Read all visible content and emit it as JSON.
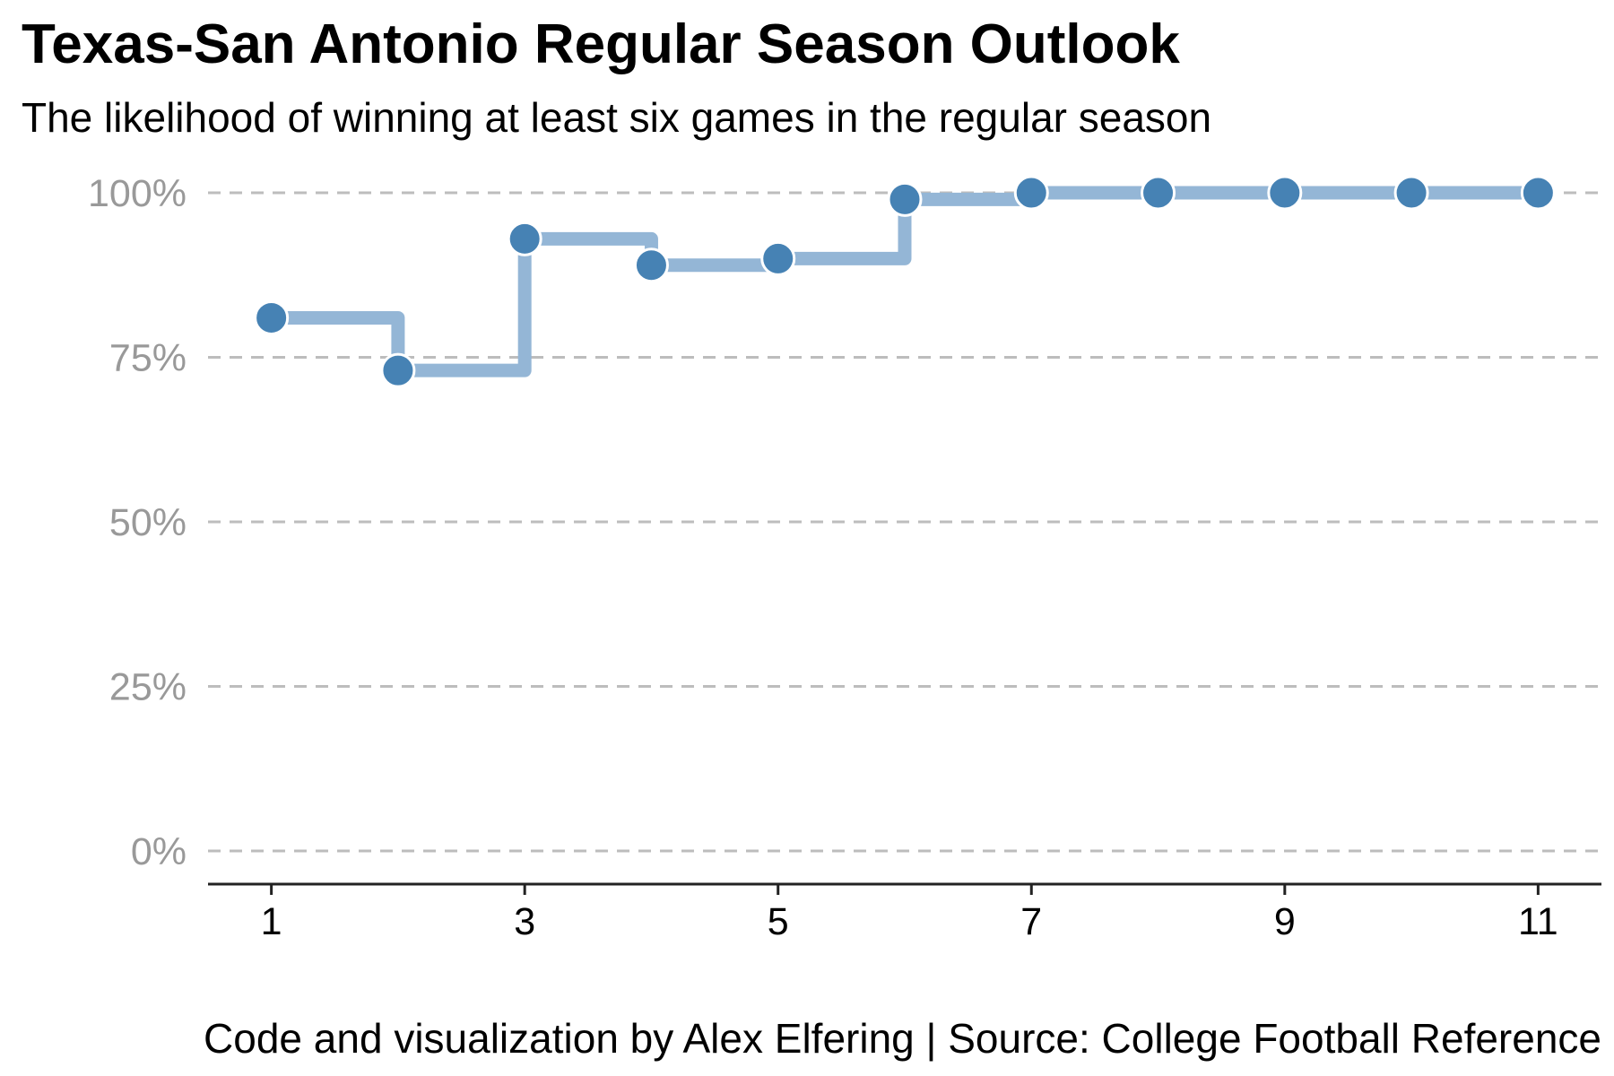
{
  "title": "Texas-San Antonio Regular Season Outlook",
  "subtitle": "The likelihood of winning at least six games in the regular season",
  "caption": "Code and visualization by Alex Elfering | Source: College Football Reference",
  "colors": {
    "step_line": "#94b6d6",
    "point": "#4682b4",
    "grid": "#bdbdbd",
    "axis": "#222222",
    "y_tick_text": "#999999",
    "x_tick_text": "#000000"
  },
  "chart_data": {
    "type": "line",
    "line_style": "step",
    "x": [
      1,
      2,
      3,
      4,
      5,
      6,
      7,
      8,
      9,
      10,
      11
    ],
    "values": [
      0.81,
      0.73,
      0.93,
      0.89,
      0.9,
      0.99,
      1.0,
      1.0,
      1.0,
      1.0,
      1.0
    ],
    "xlim": [
      0.5,
      11.5
    ],
    "ylim": [
      0,
      1
    ],
    "x_ticks": [
      1,
      3,
      5,
      7,
      9,
      11
    ],
    "y_ticks": [
      0,
      0.25,
      0.5,
      0.75,
      1.0
    ],
    "y_tick_labels": [
      "0%",
      "25%",
      "50%",
      "75%",
      "100%"
    ],
    "grid": "horizontal dashed",
    "legend": "none",
    "xlabel": "",
    "ylabel": ""
  }
}
